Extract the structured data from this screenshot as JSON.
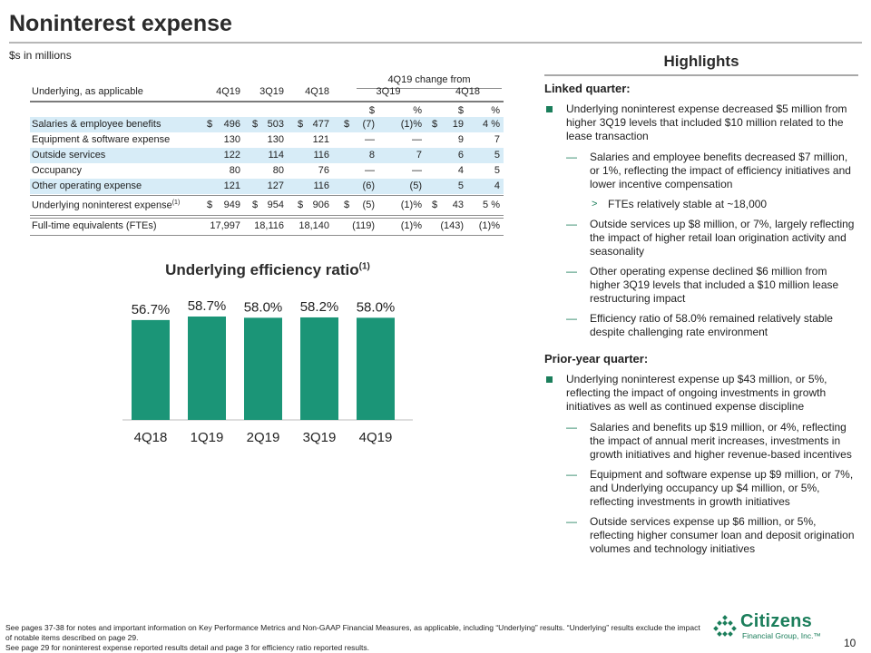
{
  "page": {
    "title": "Noninterest expense",
    "units": "$s in millions",
    "page_number": "10"
  },
  "table": {
    "change_header": "4Q19 change from",
    "columns": {
      "label": "Underlying, as applicable",
      "q1": "4Q19",
      "q2": "3Q19",
      "q3": "4Q18",
      "grp1": "3Q19",
      "grp2": "4Q18"
    },
    "subheads": [
      "$",
      "%",
      "$",
      "%"
    ],
    "rows": [
      {
        "label": "Salaries & employee benefits",
        "v1": "496",
        "v2": "503",
        "v3": "477",
        "d1": "(7)",
        "p1": "(1)%",
        "d2": "19",
        "p2": "4 %"
      },
      {
        "label": "Equipment & software expense",
        "v1": "130",
        "v2": "130",
        "v3": "121",
        "d1": "—",
        "p1": "—",
        "d2": "9",
        "p2": "7"
      },
      {
        "label": "Outside services",
        "v1": "122",
        "v2": "114",
        "v3": "116",
        "d1": "8",
        "p1": "7",
        "d2": "6",
        "p2": "5"
      },
      {
        "label": "Occupancy",
        "v1": "80",
        "v2": "80",
        "v3": "76",
        "d1": "—",
        "p1": "—",
        "d2": "4",
        "p2": "5"
      },
      {
        "label": "Other operating expense",
        "v1": "121",
        "v2": "127",
        "v3": "116",
        "d1": "(6)",
        "p1": "(5)",
        "d2": "5",
        "p2": "4"
      }
    ],
    "total": {
      "label": "Underlying noninterest expense",
      "sup": "(1)",
      "v1": "949",
      "v2": "954",
      "v3": "906",
      "d1": "(5)",
      "p1": "(1)%",
      "d2": "43",
      "p2": "5 %"
    },
    "fte": {
      "label": "Full-time equivalents (FTEs)",
      "v1": "17,997",
      "v2": "18,116",
      "v3": "18,140",
      "d1": "(119)",
      "p1": "(1)%",
      "d2": "(143)",
      "p2": "(1)%"
    },
    "dollar_sign": "$"
  },
  "chart_data": {
    "type": "bar",
    "title": "Underlying efficiency ratio",
    "title_sup": "(1)",
    "categories": [
      "4Q18",
      "1Q19",
      "2Q19",
      "3Q19",
      "4Q19"
    ],
    "values": [
      56.7,
      58.7,
      58.0,
      58.2,
      58.0
    ],
    "labels": [
      "56.7%",
      "58.7%",
      "58.0%",
      "58.2%",
      "58.0%"
    ],
    "bar_color": "#1b9577",
    "xlabel": "",
    "ylabel": "",
    "grid": false
  },
  "highlights": {
    "title": "Highlights",
    "linked": {
      "heading": "Linked quarter:",
      "main": "Underlying noninterest expense decreased $5 million from higher 3Q19 levels that included $10 million related to the lease transaction",
      "sub1": "Salaries and employee benefits decreased $7 million, or 1%, reflecting the impact of efficiency initiatives and lower incentive compensation",
      "sub1a": "FTEs relatively stable at ~18,000",
      "sub2": "Outside services up $8 million, or 7%, largely reflecting the impact of higher retail loan origination activity and seasonality",
      "sub3": "Other operating expense declined $6 million from higher 3Q19 levels that included a $10 million lease restructuring impact",
      "sub4": "Efficiency ratio of 58.0% remained relatively stable despite challenging rate environment"
    },
    "prior": {
      "heading": "Prior-year quarter:",
      "main": "Underlying noninterest expense up $43 million, or 5%, reflecting the impact of ongoing investments in growth initiatives as well as continued expense discipline",
      "sub1": "Salaries and benefits up $19 million, or 4%, reflecting the impact of annual merit increases, investments in growth initiatives and higher revenue-based incentives",
      "sub2": "Equipment and software expense up $9 million, or 7%, and Underlying occupancy up $4 million, or 5%, reflecting investments in growth initiatives",
      "sub3": "Outside services expense up $6 million, or 5%, reflecting higher consumer loan and deposit origination volumes and technology initiatives"
    },
    "dash": "—",
    "caret": ">"
  },
  "footer": {
    "line1": "See pages 37-38 for notes and important information on Key Performance Metrics and Non-GAAP Financial Measures, as applicable, including “Underlying” results. “Underlying” results exclude the impact of notable items described on page 29.",
    "line2": "See page 29 for noninterest expense reported results detail and page 3 for efficiency ratio reported results."
  },
  "logo": {
    "name": "Citizens",
    "sub": "Financial Group, Inc.™",
    "color": "#1b7e5b"
  }
}
